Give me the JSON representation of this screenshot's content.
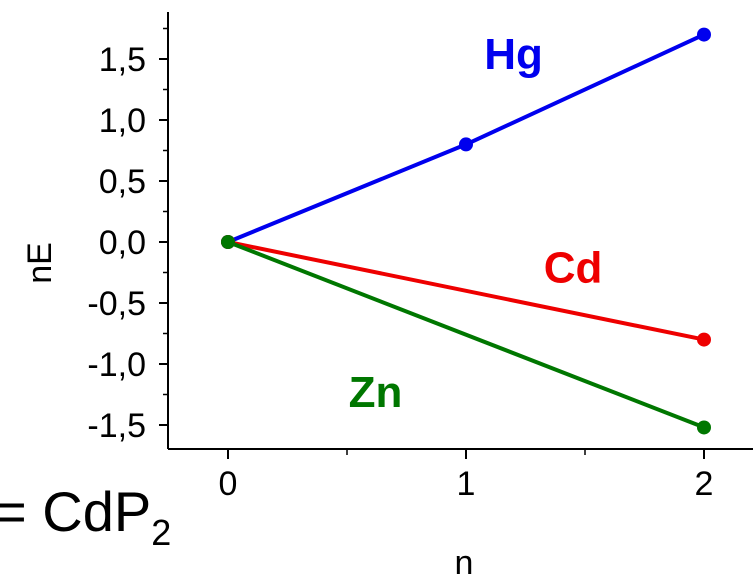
{
  "chart_data": {
    "type": "line",
    "xlabel": "n",
    "ylabel": "nE",
    "xlim": [
      -0.25,
      2.2
    ],
    "ylim": [
      -1.7,
      1.9
    ],
    "x_ticks": [
      0,
      1,
      2
    ],
    "x_tick_labels": [
      "0",
      "1",
      "2"
    ],
    "y_ticks": [
      1.5,
      1.0,
      0.5,
      0.0,
      -0.5,
      -1.0,
      -1.5
    ],
    "y_tick_labels": [
      "1,5",
      "1,0",
      "0,5",
      "0,0",
      "-0,5",
      "-1,0",
      "-1,5"
    ],
    "grid": false,
    "series": [
      {
        "name": "Hg",
        "color": "#0000ee",
        "x": [
          0,
          1,
          2
        ],
        "y": [
          0.0,
          0.8,
          1.7
        ],
        "label_at": [
          1.2,
          1.55
        ]
      },
      {
        "name": "Cd",
        "color": "#ee0000",
        "x": [
          0,
          2
        ],
        "y": [
          0.0,
          -0.8
        ],
        "label_at": [
          1.45,
          -0.2
        ]
      },
      {
        "name": "Zn",
        "color": "#007700",
        "x": [
          0,
          2
        ],
        "y": [
          0.0,
          -1.52
        ],
        "label_at": [
          0.62,
          -1.22
        ]
      }
    ]
  },
  "formula": {
    "prefix": "= CdP",
    "subscript": "2"
  }
}
